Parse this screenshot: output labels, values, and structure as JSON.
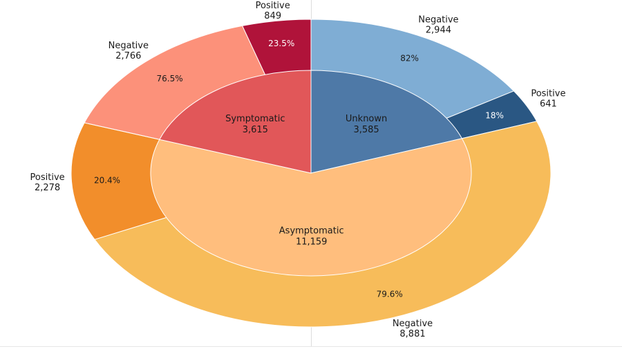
{
  "chart_data": {
    "type": "pie",
    "variant": "nested-donut",
    "title": "",
    "inner": [
      {
        "name": "Unknown",
        "value": 3585,
        "label": "3,585",
        "color": "#4e79a7"
      },
      {
        "name": "Asymptomatic",
        "value": 11159,
        "label": "11,159",
        "color": "#ffbe7d"
      },
      {
        "name": "Symptomatic",
        "value": 3615,
        "label": "3,615",
        "color": "#e15759"
      }
    ],
    "outer": [
      {
        "parent": "Unknown",
        "name": "Negative",
        "value": 2944,
        "label": "2,944",
        "pct": "82%",
        "color": "#7fadd4",
        "pct_color": "#1a1a1a"
      },
      {
        "parent": "Unknown",
        "name": "Positive",
        "value": 641,
        "label": "641",
        "pct": "18%",
        "color": "#2a5783",
        "pct_color": "#ffffff"
      },
      {
        "parent": "Asymptomatic",
        "name": "Negative",
        "value": 8881,
        "label": "8,881",
        "pct": "79.6%",
        "color": "#f7bc5a",
        "pct_color": "#1a1a1a"
      },
      {
        "parent": "Asymptomatic",
        "name": "Positive",
        "value": 2278,
        "label": "2,278",
        "pct": "20.4%",
        "color": "#f28e2b",
        "pct_color": "#1a1a1a"
      },
      {
        "parent": "Symptomatic",
        "name": "Negative",
        "value": 2766,
        "label": "2,766",
        "pct": "76.5%",
        "color": "#fc917a",
        "pct_color": "#1a1a1a"
      },
      {
        "parent": "Symptomatic",
        "name": "Positive",
        "value": 849,
        "label": "849",
        "pct": "23.5%",
        "color": "#b0133a",
        "pct_color": "#ffffff"
      }
    ],
    "text_color": "#1a1a1a",
    "divider_color": "#ffffff"
  }
}
